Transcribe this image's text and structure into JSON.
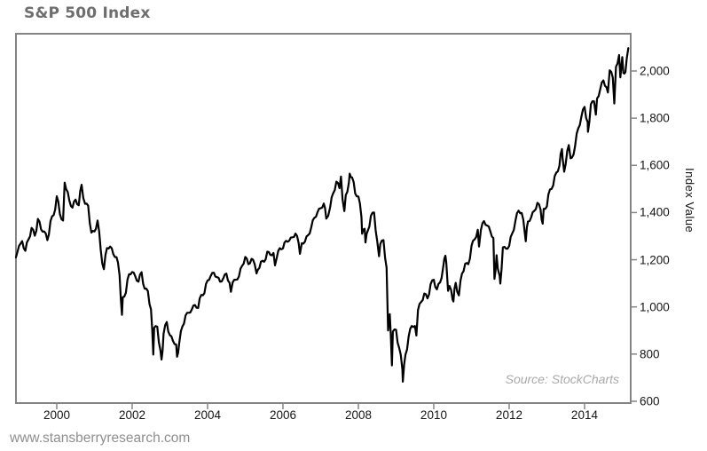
{
  "page": {
    "title": "S&P 500 Index",
    "footer": "www.stansberryresearch.com"
  },
  "chart_data": {
    "type": "line",
    "title": "S&P 500 Index",
    "xlabel": "",
    "ylabel": "Index Value",
    "source_note": "Source: StockCharts",
    "grid": false,
    "legend": null,
    "line_color": "#000000",
    "axis_color": "#858585",
    "xlim": [
      1998.918,
      2015.248
    ],
    "ylim": [
      588.7,
      2161.7
    ],
    "xticks": [
      2000,
      2002,
      2004,
      2006,
      2008,
      2010,
      2012,
      2014
    ],
    "xtick_labels": [
      "2000",
      "2002",
      "2004",
      "2006",
      "2008",
      "2010",
      "2012",
      "2014"
    ],
    "yticks": [
      600,
      800,
      1000,
      1200,
      1400,
      1600,
      1800,
      2000
    ],
    "ytick_labels": [
      "600",
      "800",
      "1,000",
      "1,200",
      "1,400",
      "1,600",
      "1,800",
      "2,000"
    ],
    "series": [
      {
        "name": "S&P 500 Index",
        "points": [
          [
            1998.918,
            1210
          ],
          [
            1999.083,
            1279
          ],
          [
            1999.167,
            1238
          ],
          [
            1999.25,
            1286
          ],
          [
            1999.333,
            1335
          ],
          [
            1999.417,
            1302
          ],
          [
            1999.5,
            1373
          ],
          [
            1999.583,
            1329
          ],
          [
            1999.667,
            1320
          ],
          [
            1999.75,
            1283
          ],
          [
            1999.833,
            1363
          ],
          [
            1999.917,
            1389
          ],
          [
            2000.0,
            1469
          ],
          [
            2000.083,
            1394
          ],
          [
            2000.167,
            1366
          ],
          [
            2000.21,
            1527
          ],
          [
            2000.25,
            1499
          ],
          [
            2000.333,
            1452
          ],
          [
            2000.417,
            1421
          ],
          [
            2000.5,
            1455
          ],
          [
            2000.583,
            1431
          ],
          [
            2000.66,
            1518
          ],
          [
            2000.75,
            1437
          ],
          [
            2000.833,
            1429
          ],
          [
            2000.917,
            1315
          ],
          [
            2001.0,
            1320
          ],
          [
            2001.083,
            1366
          ],
          [
            2001.167,
            1240
          ],
          [
            2001.25,
            1160
          ],
          [
            2001.333,
            1249
          ],
          [
            2001.417,
            1256
          ],
          [
            2001.5,
            1224
          ],
          [
            2001.583,
            1211
          ],
          [
            2001.667,
            1134
          ],
          [
            2001.73,
            966
          ],
          [
            2001.75,
            1041
          ],
          [
            2001.833,
            1060
          ],
          [
            2001.917,
            1139
          ],
          [
            2002.0,
            1148
          ],
          [
            2002.083,
            1130
          ],
          [
            2002.167,
            1107
          ],
          [
            2002.25,
            1147
          ],
          [
            2002.333,
            1077
          ],
          [
            2002.417,
            1067
          ],
          [
            2002.5,
            990
          ],
          [
            2002.56,
            798
          ],
          [
            2002.583,
            912
          ],
          [
            2002.667,
            916
          ],
          [
            2002.75,
            815
          ],
          [
            2002.78,
            777
          ],
          [
            2002.833,
            886
          ],
          [
            2002.917,
            936
          ],
          [
            2003.0,
            880
          ],
          [
            2003.083,
            856
          ],
          [
            2003.167,
            841
          ],
          [
            2003.19,
            789
          ],
          [
            2003.25,
            848
          ],
          [
            2003.333,
            917
          ],
          [
            2003.417,
            964
          ],
          [
            2003.5,
            975
          ],
          [
            2003.583,
            990
          ],
          [
            2003.667,
            1008
          ],
          [
            2003.75,
            996
          ],
          [
            2003.833,
            1051
          ],
          [
            2003.917,
            1058
          ],
          [
            2004.0,
            1112
          ],
          [
            2004.083,
            1131
          ],
          [
            2004.167,
            1145
          ],
          [
            2004.25,
            1126
          ],
          [
            2004.333,
            1107
          ],
          [
            2004.417,
            1121
          ],
          [
            2004.5,
            1141
          ],
          [
            2004.583,
            1102
          ],
          [
            2004.62,
            1064
          ],
          [
            2004.667,
            1104
          ],
          [
            2004.75,
            1115
          ],
          [
            2004.833,
            1130
          ],
          [
            2004.917,
            1174
          ],
          [
            2005.0,
            1212
          ],
          [
            2005.083,
            1181
          ],
          [
            2005.167,
            1204
          ],
          [
            2005.25,
            1181
          ],
          [
            2005.3,
            1142
          ],
          [
            2005.333,
            1157
          ],
          [
            2005.417,
            1192
          ],
          [
            2005.5,
            1191
          ],
          [
            2005.583,
            1234
          ],
          [
            2005.667,
            1220
          ],
          [
            2005.75,
            1229
          ],
          [
            2005.79,
            1176
          ],
          [
            2005.833,
            1207
          ],
          [
            2005.917,
            1249
          ],
          [
            2006.0,
            1248
          ],
          [
            2006.083,
            1280
          ],
          [
            2006.167,
            1281
          ],
          [
            2006.25,
            1295
          ],
          [
            2006.333,
            1311
          ],
          [
            2006.417,
            1270
          ],
          [
            2006.45,
            1225
          ],
          [
            2006.5,
            1270
          ],
          [
            2006.583,
            1277
          ],
          [
            2006.667,
            1304
          ],
          [
            2006.75,
            1336
          ],
          [
            2006.833,
            1378
          ],
          [
            2006.917,
            1401
          ],
          [
            2007.0,
            1418
          ],
          [
            2007.083,
            1438
          ],
          [
            2007.15,
            1374
          ],
          [
            2007.25,
            1421
          ],
          [
            2007.333,
            1482
          ],
          [
            2007.417,
            1531
          ],
          [
            2007.5,
            1503
          ],
          [
            2007.54,
            1553
          ],
          [
            2007.583,
            1455
          ],
          [
            2007.63,
            1406
          ],
          [
            2007.667,
            1474
          ],
          [
            2007.75,
            1527
          ],
          [
            2007.77,
            1565
          ],
          [
            2007.833,
            1549
          ],
          [
            2007.917,
            1481
          ],
          [
            2008.0,
            1468
          ],
          [
            2008.083,
            1379
          ],
          [
            2008.1,
            1310
          ],
          [
            2008.167,
            1331
          ],
          [
            2008.19,
            1273
          ],
          [
            2008.25,
            1323
          ],
          [
            2008.333,
            1386
          ],
          [
            2008.417,
            1400
          ],
          [
            2008.5,
            1280
          ],
          [
            2008.55,
            1215
          ],
          [
            2008.583,
            1267
          ],
          [
            2008.667,
            1283
          ],
          [
            2008.75,
            1166
          ],
          [
            2008.79,
            900
          ],
          [
            2008.833,
            969
          ],
          [
            2008.89,
            752
          ],
          [
            2008.917,
            896
          ],
          [
            2009.0,
            903
          ],
          [
            2009.083,
            826
          ],
          [
            2009.167,
            735
          ],
          [
            2009.18,
            683
          ],
          [
            2009.25,
            798
          ],
          [
            2009.333,
            873
          ],
          [
            2009.417,
            919
          ],
          [
            2009.5,
            919
          ],
          [
            2009.54,
            879
          ],
          [
            2009.583,
            987
          ],
          [
            2009.667,
            1021
          ],
          [
            2009.75,
            1057
          ],
          [
            2009.833,
            1036
          ],
          [
            2009.917,
            1096
          ],
          [
            2010.0,
            1115
          ],
          [
            2010.083,
            1074
          ],
          [
            2010.167,
            1104
          ],
          [
            2010.25,
            1169
          ],
          [
            2010.31,
            1217
          ],
          [
            2010.333,
            1187
          ],
          [
            2010.38,
            1068
          ],
          [
            2010.417,
            1089
          ],
          [
            2010.5,
            1031
          ],
          [
            2010.52,
            1023
          ],
          [
            2010.583,
            1102
          ],
          [
            2010.667,
            1049
          ],
          [
            2010.75,
            1141
          ],
          [
            2010.833,
            1183
          ],
          [
            2010.917,
            1181
          ],
          [
            2011.0,
            1258
          ],
          [
            2011.083,
            1286
          ],
          [
            2011.167,
            1327
          ],
          [
            2011.2,
            1256
          ],
          [
            2011.25,
            1326
          ],
          [
            2011.333,
            1364
          ],
          [
            2011.417,
            1345
          ],
          [
            2011.5,
            1321
          ],
          [
            2011.583,
            1292
          ],
          [
            2011.61,
            1119
          ],
          [
            2011.667,
            1219
          ],
          [
            2011.7,
            1162
          ],
          [
            2011.75,
            1131
          ],
          [
            2011.765,
            1099
          ],
          [
            2011.833,
            1253
          ],
          [
            2011.917,
            1247
          ],
          [
            2012.0,
            1258
          ],
          [
            2012.083,
            1312
          ],
          [
            2012.167,
            1366
          ],
          [
            2012.25,
            1408
          ],
          [
            2012.333,
            1398
          ],
          [
            2012.417,
            1310
          ],
          [
            2012.44,
            1278
          ],
          [
            2012.5,
            1362
          ],
          [
            2012.583,
            1379
          ],
          [
            2012.667,
            1407
          ],
          [
            2012.75,
            1441
          ],
          [
            2012.833,
            1412
          ],
          [
            2012.89,
            1353
          ],
          [
            2012.917,
            1416
          ],
          [
            2013.0,
            1426
          ],
          [
            2013.083,
            1498
          ],
          [
            2013.167,
            1515
          ],
          [
            2013.25,
            1569
          ],
          [
            2013.333,
            1598
          ],
          [
            2013.4,
            1669
          ],
          [
            2013.417,
            1631
          ],
          [
            2013.46,
            1573
          ],
          [
            2013.5,
            1606
          ],
          [
            2013.583,
            1686
          ],
          [
            2013.63,
            1630
          ],
          [
            2013.667,
            1633
          ],
          [
            2013.75,
            1682
          ],
          [
            2013.833,
            1757
          ],
          [
            2013.917,
            1806
          ],
          [
            2014.0,
            1848
          ],
          [
            2014.083,
            1783
          ],
          [
            2014.09,
            1742
          ],
          [
            2014.167,
            1859
          ],
          [
            2014.25,
            1872
          ],
          [
            2014.3,
            1815
          ],
          [
            2014.333,
            1884
          ],
          [
            2014.417,
            1924
          ],
          [
            2014.5,
            1960
          ],
          [
            2014.583,
            1931
          ],
          [
            2014.62,
            1909
          ],
          [
            2014.667,
            2003
          ],
          [
            2014.75,
            1972
          ],
          [
            2014.79,
            1862
          ],
          [
            2014.833,
            2018
          ],
          [
            2014.917,
            2068
          ],
          [
            2014.95,
            1973
          ],
          [
            2015.0,
            2059
          ],
          [
            2015.03,
            1992
          ],
          [
            2015.083,
            1995
          ],
          [
            2015.12,
            2055
          ],
          [
            2015.16,
            2097
          ]
        ]
      }
    ]
  }
}
